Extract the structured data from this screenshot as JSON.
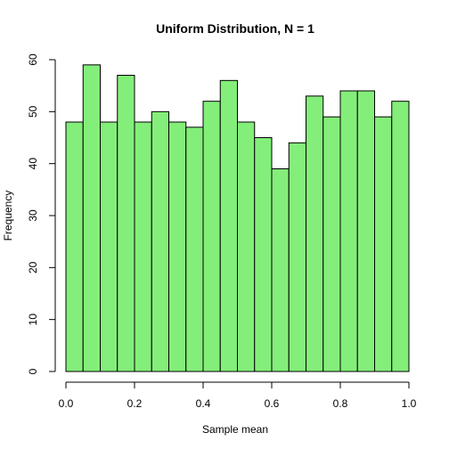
{
  "chart_data": {
    "type": "bar",
    "title": "Uniform Distribution, N =  1",
    "xlabel": "Sample mean",
    "ylabel": "Frequency",
    "bar_color": "#84EE7A",
    "bin_edges": [
      0.0,
      0.05,
      0.1,
      0.15,
      0.2,
      0.25,
      0.3,
      0.35,
      0.4,
      0.45,
      0.5,
      0.55,
      0.6,
      0.65,
      0.7,
      0.75,
      0.8,
      0.85,
      0.9,
      0.95,
      1.0
    ],
    "values": [
      48,
      59,
      48,
      57,
      48,
      50,
      48,
      47,
      52,
      56,
      48,
      45,
      39,
      44,
      53,
      49,
      54,
      54,
      49,
      52
    ],
    "xlim": [
      0,
      1
    ],
    "ylim": [
      0,
      60
    ],
    "xticks": [
      0.0,
      0.2,
      0.4,
      0.6,
      0.8,
      1.0
    ],
    "xtick_labels": [
      "0.0",
      "0.2",
      "0.4",
      "0.6",
      "0.8",
      "1.0"
    ],
    "yticks": [
      0,
      10,
      20,
      30,
      40,
      50,
      60
    ],
    "ytick_labels": [
      "0",
      "10",
      "20",
      "30",
      "40",
      "50",
      "60"
    ],
    "grid": false
  }
}
